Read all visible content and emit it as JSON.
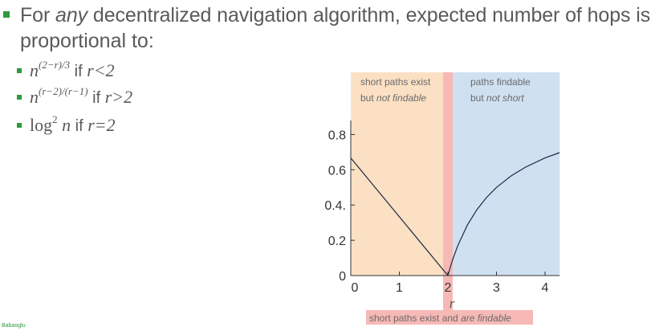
{
  "slide": {
    "heading_part1": "For ",
    "heading_emph": "any",
    "heading_part2": " decentralized navigation algorithm, expected number of hops is",
    "heading_line2": "proportional to:",
    "items": [
      {
        "base": "n",
        "exponent": "(2−r)/3",
        "cond_text": " if ",
        "cond_math": "r<2"
      },
      {
        "base": "n",
        "exponent": "(r−2)/(r−1)",
        "cond_text": " if ",
        "cond_math": "r>2"
      },
      {
        "base": "log",
        "exponent": "2",
        "arg": " n",
        "cond_text": " if ",
        "cond_math": "r=2"
      }
    ],
    "footer": "Babaoglu"
  },
  "colors": {
    "left_region": "#fbe0c4",
    "right_region": "#cfe0f1",
    "center_band": "#f6b9b6",
    "bullet": "#2e9a3c"
  },
  "chart_data": {
    "type": "line",
    "xlabel": "r",
    "ylabel": "",
    "xlim": [
      0,
      4.3
    ],
    "ylim": [
      0,
      0.93
    ],
    "x_ticks": [
      "0",
      "1",
      "2",
      "3",
      "4"
    ],
    "y_ticks": [
      "0",
      "0.2",
      "0.4.",
      "0.6",
      "0.8"
    ],
    "series": [
      {
        "x": [
          0,
          2
        ],
        "y": [
          0.667,
          0
        ]
      },
      {
        "x": [
          2,
          2.05,
          2.1,
          2.2,
          2.4,
          2.6,
          2.8,
          3.0,
          3.3,
          3.6,
          4.0,
          4.3
        ],
        "y": [
          0,
          0.048,
          0.091,
          0.167,
          0.286,
          0.375,
          0.444,
          0.5,
          0.565,
          0.615,
          0.667,
          0.697
        ]
      }
    ],
    "annotations": {
      "left_line1": "short paths exist",
      "left_line2_plain": "but ",
      "left_line2_emph": "not findable",
      "right_line1": "paths findable",
      "right_line2_plain": "but ",
      "right_line2_emph": "not short",
      "bottom_plain": "short paths exist and ",
      "bottom_emph": "are findable"
    }
  }
}
